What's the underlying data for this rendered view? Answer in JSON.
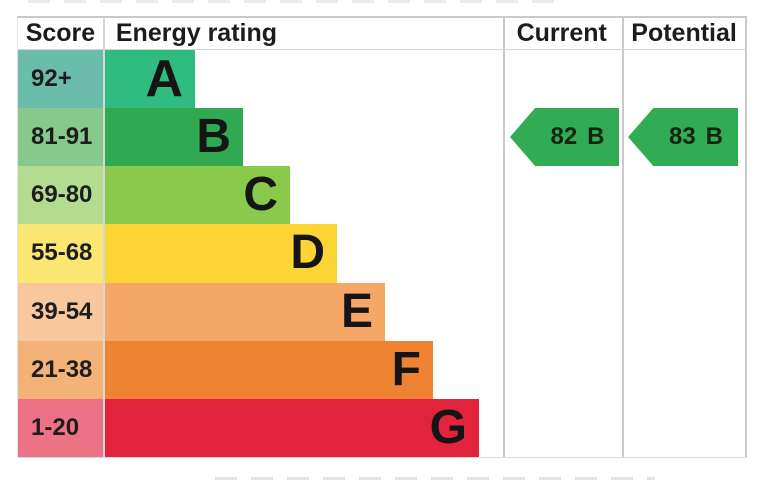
{
  "headers": {
    "score": "Score",
    "rating": "Energy rating",
    "current": "Current",
    "potential": "Potential"
  },
  "rows": [
    {
      "score": "92+",
      "letter": "A",
      "score_color": "#6cbcab",
      "band_color": "#30bc81",
      "band_width": 90
    },
    {
      "score": "81-91",
      "letter": "B",
      "score_color": "#87c98c",
      "band_color": "#2faa52",
      "band_width": 138
    },
    {
      "score": "69-80",
      "letter": "C",
      "score_color": "#b3dc90",
      "band_color": "#8bc94c",
      "band_width": 185
    },
    {
      "score": "55-68",
      "letter": "D",
      "score_color": "#fbe674",
      "band_color": "#fcd433",
      "band_width": 232
    },
    {
      "score": "39-54",
      "letter": "E",
      "score_color": "#f8c79d",
      "band_color": "#f5a765",
      "band_width": 280
    },
    {
      "score": "21-38",
      "letter": "F",
      "score_color": "#f3b278",
      "band_color": "#ee8432",
      "band_width": 328
    },
    {
      "score": "1-20",
      "letter": "G",
      "score_color": "#ee7286",
      "band_color": "#e2233c",
      "band_width": 374
    }
  ],
  "current": {
    "value": "82",
    "band": "B",
    "color": "#32ab55"
  },
  "potential": {
    "value": "83",
    "band": "B",
    "color": "#32ab55"
  },
  "chart_data": {
    "type": "bar",
    "categories": [
      "A",
      "B",
      "C",
      "D",
      "E",
      "F",
      "G"
    ],
    "score_ranges": [
      "92+",
      "81-91",
      "69-80",
      "55-68",
      "39-54",
      "21-38",
      "1-20"
    ],
    "values": [
      90,
      138,
      185,
      232,
      280,
      328,
      374
    ],
    "band_colors": [
      "#30bc81",
      "#2faa52",
      "#8bc94c",
      "#fcd433",
      "#f5a765",
      "#ee8432",
      "#e2233c"
    ],
    "score_cell_colors": [
      "#6cbcab",
      "#87c98c",
      "#b3dc90",
      "#fbe674",
      "#f8c79d",
      "#f3b278",
      "#ee7286"
    ],
    "columns": [
      "Score",
      "Energy rating",
      "Current",
      "Potential"
    ],
    "current_rating": {
      "score": 82,
      "band": "B"
    },
    "potential_rating": {
      "score": 83,
      "band": "B"
    },
    "legend_position": "none",
    "grid": false
  }
}
